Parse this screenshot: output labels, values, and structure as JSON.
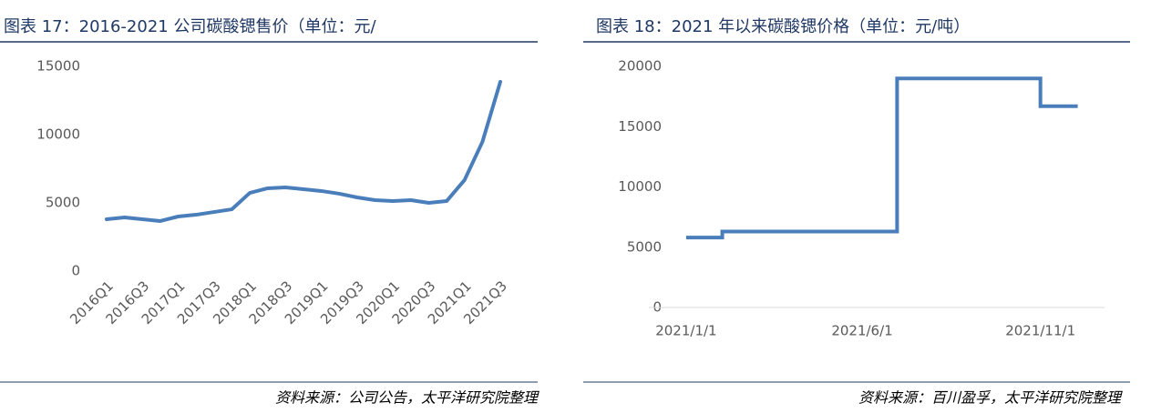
{
  "chart_data": [
    {
      "type": "line",
      "title": "图表 17：2016-2021 公司碳酸锶售价（单位：元/",
      "categories": [
        "2016Q1",
        null,
        "2016Q3",
        null,
        "2017Q1",
        null,
        "2017Q3",
        null,
        "2018Q1",
        null,
        "2018Q3",
        null,
        "2019Q1",
        null,
        "2019Q3",
        null,
        "2020Q1",
        null,
        "2020Q3",
        null,
        "2021Q1",
        null,
        "2021Q3"
      ],
      "values": [
        3800,
        3930,
        3800,
        3670,
        4000,
        4130,
        4330,
        4530,
        5730,
        6070,
        6130,
        6000,
        5870,
        5670,
        5400,
        5200,
        5130,
        5200,
        5000,
        5130,
        6670,
        9470,
        13870
      ],
      "color": "#4a7ebb",
      "ylim": [
        0,
        15000
      ],
      "yticks": [
        0,
        5000,
        10000,
        15000
      ],
      "grid": false,
      "source": "资料来源：公司公告，太平洋研究院整理"
    },
    {
      "type": "step",
      "title": "图表 18：2021 年以来碳酸锶价格（单位：元/吨）",
      "x": [
        "2021/1/1",
        "2021/2/1",
        "2021/7/1",
        "2021/11/1",
        "2021/12/3"
      ],
      "values": [
        5800,
        6300,
        19000,
        16700,
        16700
      ],
      "color": "#4a7ebb",
      "xlim": [
        "2020/11/30",
        "2021/12/26"
      ],
      "xticks": [
        "2021/1/1",
        "2021/6/1",
        "2021/11/1"
      ],
      "ylim": [
        0,
        20000
      ],
      "yticks": [
        0,
        5000,
        10000,
        15000,
        20000
      ],
      "grid": false,
      "source": "资料来源：百川盈孚，太平洋研究院整理"
    }
  ]
}
